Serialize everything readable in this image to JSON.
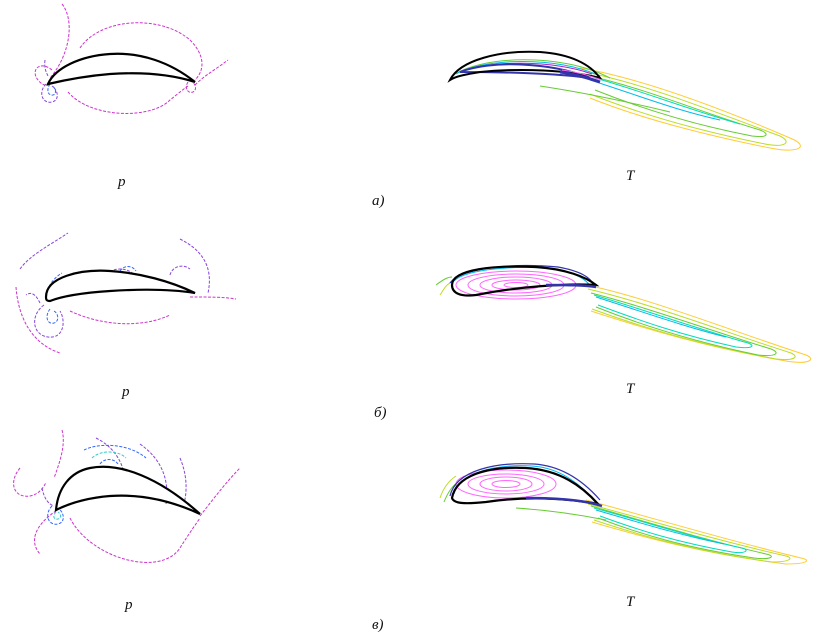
{
  "figure": {
    "rows": [
      {
        "left_label": "p",
        "right_label": "T",
        "caption": "а)"
      },
      {
        "left_label": "p",
        "right_label": "T",
        "caption": "б)"
      },
      {
        "left_label": "p",
        "right_label": "T",
        "caption": "в)"
      }
    ]
  },
  "colors": {
    "profile": "#000000",
    "pressure": [
      "#cc33cc",
      "#8844dd",
      "#3366ff",
      "#33cccc"
    ],
    "temperature": [
      "#ff66ff",
      "#aa22cc",
      "#3333aa",
      "#00bbee",
      "#00ddbb",
      "#66cc33",
      "#bbdd22",
      "#ffcc33"
    ]
  }
}
